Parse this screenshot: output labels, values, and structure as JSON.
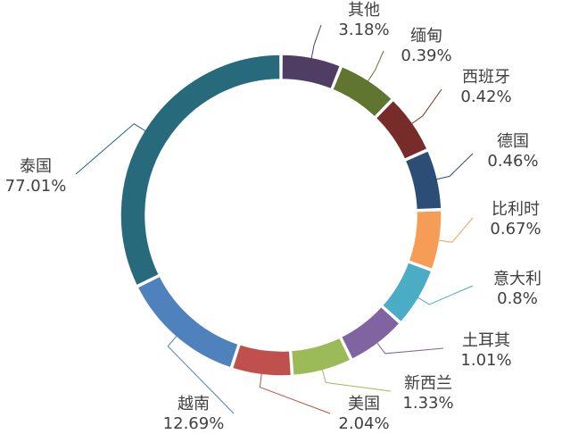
{
  "chart_data": {
    "type": "pie",
    "donut": true,
    "title": "",
    "legend": "none",
    "categories": [
      "其他",
      "缅甸",
      "西班牙",
      "德国",
      "比利时",
      "意大利",
      "土耳其",
      "新西兰",
      "美国",
      "越南",
      "泰国"
    ],
    "values": [
      3.18,
      0.39,
      0.42,
      0.46,
      0.67,
      0.8,
      1.01,
      1.33,
      2.04,
      12.69,
      77.01
    ],
    "value_labels": [
      "3.18%",
      "0.39%",
      "0.42%",
      "0.46%",
      "0.67%",
      "0.8%",
      "1.01%",
      "1.33%",
      "2.04%",
      "12.69%",
      "77.01%"
    ],
    "colors": [
      "#4f3d63",
      "#5f7530",
      "#772c2a",
      "#2c4d75",
      "#f59d56",
      "#4bacc6",
      "#8064a2",
      "#9bbb59",
      "#c0504d",
      "#4f81bd",
      "#276a7c"
    ]
  }
}
